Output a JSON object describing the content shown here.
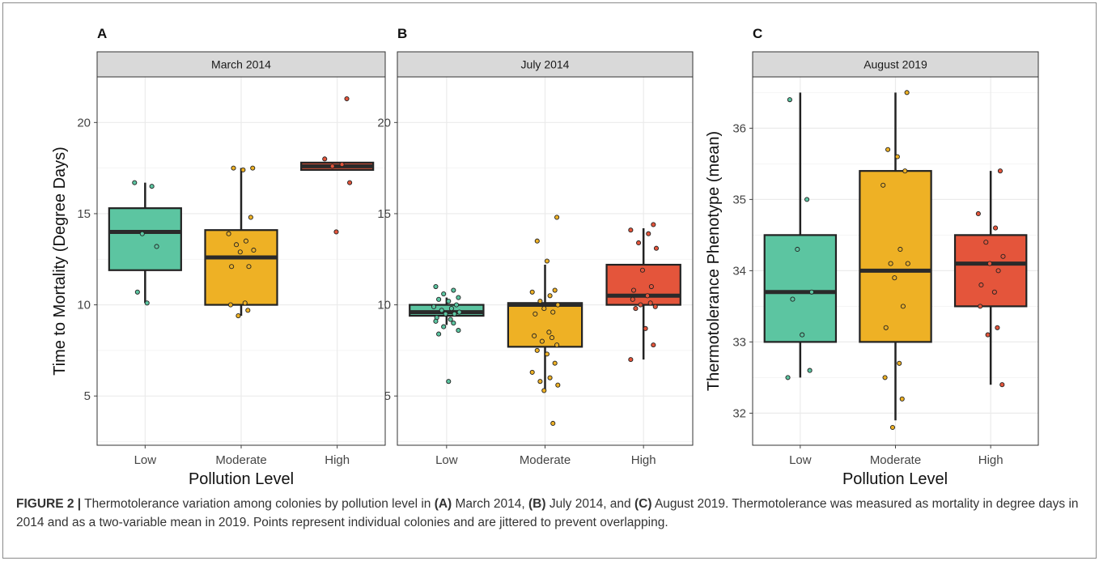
{
  "figure": {
    "caption": {
      "label": "FIGURE 2 |",
      "seg1": " Thermotolerance variation among colonies by pollution level in ",
      "a": "(A)",
      "seg2": " March 2014, ",
      "b": "(B)",
      "seg3": " July 2014, and ",
      "c": "(C)",
      "seg4": " August 2019. Thermotolerance was measured as mortality in degree days in 2014 and as a two-variable mean in 2019. Points represent individual colonies and are jittered to prevent overlapping."
    }
  },
  "colors": {
    "Low": "#5cc5a1",
    "Moderate": "#eeb125",
    "High": "#e4553b",
    "strip": "#d9d9d9",
    "grid": "#ebebeb"
  },
  "chart_data": [
    {
      "type": "box",
      "panel_label": "A",
      "facet_title": "March 2014",
      "xlabel": "Pollution Level",
      "ylabel": "Time to Mortality (Degree Days)",
      "categories": [
        "Low",
        "Moderate",
        "High"
      ],
      "ylim": [
        2.3,
        22.5
      ],
      "yticks": [
        5,
        10,
        15,
        20
      ],
      "grid": true,
      "boxes": [
        {
          "category": "Low",
          "whisker_low": 10.1,
          "q1": 11.9,
          "median": 14.0,
          "q3": 15.3,
          "whisker_high": 16.7
        },
        {
          "category": "Moderate",
          "whisker_low": 9.4,
          "q1": 10.0,
          "median": 12.6,
          "q3": 14.1,
          "whisker_high": 17.5
        },
        {
          "category": "High",
          "whisker_low": 17.4,
          "q1": 17.4,
          "median": 17.6,
          "q3": 17.8,
          "whisker_high": 17.8
        }
      ],
      "points": [
        {
          "category": "Low",
          "values": [
            16.7,
            16.5,
            13.9,
            13.2,
            10.7,
            10.1
          ]
        },
        {
          "category": "Moderate",
          "values": [
            17.5,
            17.5,
            17.4,
            14.8,
            13.9,
            13.5,
            13.3,
            13.0,
            12.9,
            12.1,
            12.1,
            10.1,
            10.0,
            9.7,
            9.4
          ]
        },
        {
          "category": "High",
          "values": [
            21.3,
            18.0,
            17.7,
            17.6,
            16.7,
            14.0
          ]
        }
      ]
    },
    {
      "type": "box",
      "panel_label": "B",
      "facet_title": "July 2014",
      "xlabel": "",
      "ylabel": "",
      "categories": [
        "Low",
        "Moderate",
        "High"
      ],
      "ylim": [
        2.3,
        22.5
      ],
      "yticks": [
        5,
        10,
        15,
        20
      ],
      "grid": true,
      "boxes": [
        {
          "category": "Low",
          "whisker_low": 8.9,
          "q1": 9.4,
          "median": 9.6,
          "q3": 10.0,
          "whisker_high": 10.4
        },
        {
          "category": "Moderate",
          "whisker_low": 5.3,
          "q1": 7.7,
          "median": 10.0,
          "q3": 10.1,
          "whisker_high": 12.2
        },
        {
          "category": "High",
          "whisker_low": 7.0,
          "q1": 10.0,
          "median": 10.5,
          "q3": 12.2,
          "whisker_high": 14.2
        }
      ],
      "points": [
        {
          "category": "Low",
          "values": [
            11.0,
            10.8,
            10.6,
            10.4,
            10.3,
            10.2,
            10.0,
            9.9,
            9.8,
            9.7,
            9.6,
            9.5,
            9.5,
            9.3,
            9.2,
            9.1,
            9.0,
            8.8,
            8.6,
            8.4,
            5.8
          ]
        },
        {
          "category": "Moderate",
          "values": [
            14.8,
            13.5,
            12.4,
            10.8,
            10.7,
            10.5,
            10.2,
            10.0,
            9.8,
            9.6,
            9.5,
            8.5,
            8.3,
            8.2,
            8.0,
            7.8,
            7.5,
            7.3,
            6.8,
            6.3,
            6.0,
            5.8,
            5.6,
            5.3,
            3.5
          ]
        },
        {
          "category": "High",
          "values": [
            14.4,
            14.1,
            13.9,
            13.4,
            13.1,
            11.9,
            11.0,
            10.8,
            10.5,
            10.3,
            10.1,
            10.0,
            9.9,
            9.8,
            8.7,
            7.8,
            7.0
          ]
        }
      ]
    },
    {
      "type": "box",
      "panel_label": "C",
      "facet_title": "August 2019",
      "xlabel": "Pollution Level",
      "ylabel": "Thermotolerance Phenotype (mean)",
      "categories": [
        "Low",
        "Moderate",
        "High"
      ],
      "ylim": [
        31.55,
        36.72
      ],
      "yticks": [
        32,
        33,
        34,
        35,
        36
      ],
      "grid": true,
      "boxes": [
        {
          "category": "Low",
          "whisker_low": 32.5,
          "q1": 33.0,
          "median": 33.7,
          "q3": 34.5,
          "whisker_high": 36.5
        },
        {
          "category": "Moderate",
          "whisker_low": 31.9,
          "q1": 33.0,
          "median": 34.0,
          "q3": 35.4,
          "whisker_high": 36.5
        },
        {
          "category": "High",
          "whisker_low": 32.4,
          "q1": 33.5,
          "median": 34.1,
          "q3": 34.5,
          "whisker_high": 35.4
        }
      ],
      "points": [
        {
          "category": "Low",
          "values": [
            36.4,
            35.0,
            34.3,
            33.7,
            33.6,
            33.1,
            32.6,
            32.5
          ]
        },
        {
          "category": "Moderate",
          "values": [
            36.5,
            35.7,
            35.6,
            35.4,
            35.2,
            34.3,
            34.1,
            34.1,
            33.9,
            33.5,
            33.2,
            32.7,
            32.5,
            32.2,
            31.8
          ]
        },
        {
          "category": "High",
          "values": [
            35.4,
            34.8,
            34.6,
            34.4,
            34.2,
            34.1,
            34.0,
            33.8,
            33.7,
            33.5,
            33.2,
            33.1,
            32.4
          ]
        }
      ]
    }
  ]
}
